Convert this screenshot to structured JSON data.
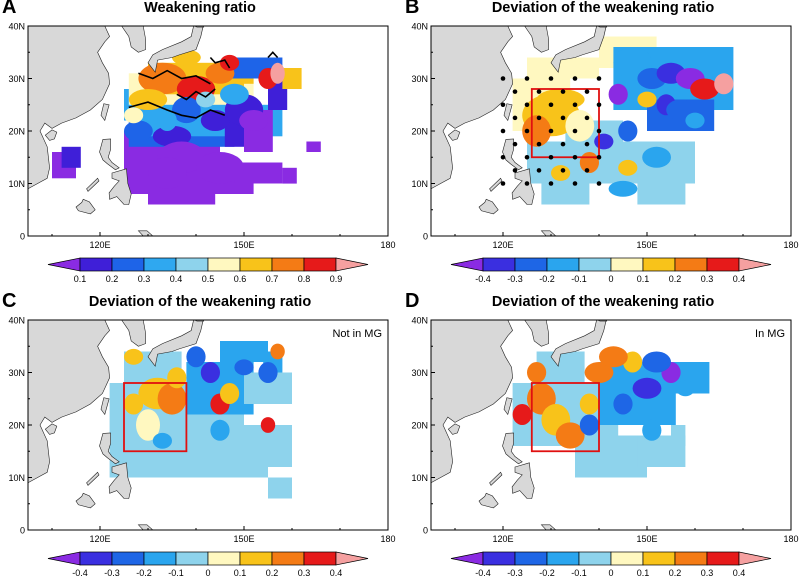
{
  "panels": [
    {
      "label": "A",
      "title": "Weakening ratio",
      "subtitle": "",
      "colorbar": [
        "0.1",
        "0.2",
        "0.3",
        "0.4",
        "0.5",
        "0.6",
        "0.7",
        "0.8",
        "0.9"
      ]
    },
    {
      "label": "B",
      "title": "Deviation of the weakening ratio",
      "subtitle": "",
      "colorbar": [
        "-0.4",
        "-0.3",
        "-0.2",
        "-0.1",
        "0",
        "0.1",
        "0.2",
        "0.3",
        "0.4"
      ]
    },
    {
      "label": "C",
      "title": "Deviation of the weakening ratio",
      "subtitle": "Not in MG",
      "colorbar": [
        "-0.4",
        "-0.3",
        "-0.2",
        "-0.1",
        "0",
        "0.1",
        "0.2",
        "0.3",
        "0.4"
      ]
    },
    {
      "label": "D",
      "title": "Deviation of the weakening ratio",
      "subtitle": "In MG",
      "colorbar": [
        "-0.4",
        "-0.3",
        "-0.2",
        "-0.1",
        "0",
        "0.1",
        "0.2",
        "0.3",
        "0.4"
      ]
    }
  ],
  "axes": {
    "lat_labels": [
      "0",
      "10N",
      "20N",
      "30N",
      "40N"
    ],
    "lon_labels": [
      "120E",
      "150E",
      "180"
    ]
  },
  "colors": {
    "ratio": [
      "#8a2be2",
      "#3f1fd8",
      "#1e64e8",
      "#2fa8f0",
      "#8ed3ec",
      "#fff8c0",
      "#f8c31a",
      "#f47b15",
      "#e61a1a",
      "#f5a0a0"
    ],
    "deviation": [
      "#8a2be2",
      "#3a2fe0",
      "#1e66e6",
      "#2aa5ee",
      "#8ed3ec",
      "#fff8c0",
      "#f8c31a",
      "#f47b15",
      "#e61a1a",
      "#f5a0a0"
    ],
    "land": "#d8d8d8"
  }
}
